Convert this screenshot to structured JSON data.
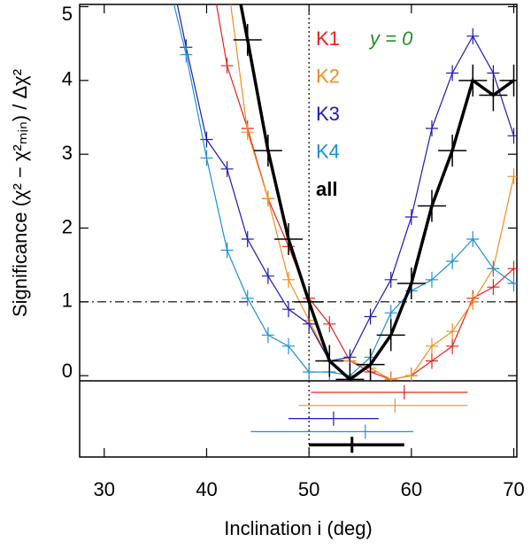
{
  "chart_data": {
    "type": "line",
    "xlabel": "Inclination i (deg)",
    "ylabel": "Significance (χ² − χ²ₘᵢₙ) / Δχ²",
    "annotation": "y = 0",
    "xlim": [
      27.6,
      70.3
    ],
    "xticks": [
      30,
      40,
      50,
      60,
      70
    ],
    "ylim": [
      -0.07,
      5.03
    ],
    "yticks": [
      0,
      1,
      2,
      3,
      4,
      5
    ],
    "vlines": [
      50
    ],
    "hlines": [
      1
    ],
    "series": [
      {
        "name": "K1",
        "color": "#e8201e",
        "width": 1.2,
        "x": [
          40,
          42,
          44,
          46,
          48,
          50,
          52,
          54,
          56,
          58,
          60,
          62,
          64,
          66,
          68,
          70
        ],
        "values": [
          5.8,
          4.2,
          3.35,
          2.4,
          1.75,
          1.05,
          0.7,
          0.2,
          0.05,
          -0.05,
          0.0,
          0.2,
          0.4,
          1.05,
          1.2,
          1.45
        ],
        "best": 59.3,
        "range": [
          50.2,
          65.5
        ]
      },
      {
        "name": "K2",
        "color": "#f28c1f",
        "width": 1.2,
        "x": [
          42,
          44,
          46,
          48,
          50,
          52,
          54,
          56,
          58,
          60,
          62,
          64,
          66,
          68,
          70
        ],
        "values": [
          5.4,
          3.3,
          2.4,
          1.3,
          0.75,
          0.2,
          0.2,
          0.1,
          -0.05,
          0.0,
          0.4,
          0.6,
          1.0,
          1.45,
          2.7
        ],
        "best": 58.4,
        "range": [
          49.0,
          65.5
        ]
      },
      {
        "name": "K3",
        "color": "#1a1ab8",
        "width": 1.2,
        "x": [
          36,
          38,
          40,
          42,
          44,
          46,
          48,
          50,
          52,
          54,
          56,
          58,
          60,
          62,
          64,
          66,
          68,
          70
        ],
        "values": [
          5.8,
          4.45,
          3.2,
          2.8,
          1.85,
          1.35,
          0.9,
          0.7,
          0.2,
          0.25,
          0.8,
          1.3,
          2.15,
          3.35,
          4.1,
          4.6,
          4.1,
          3.25
        ],
        "best": 52.4,
        "range": [
          48.0,
          56.8
        ]
      },
      {
        "name": "K4",
        "color": "#1c8fd8",
        "width": 1.2,
        "x": [
          36,
          38,
          40,
          42,
          44,
          46,
          48,
          50,
          52,
          54,
          56,
          58,
          60,
          62,
          64,
          66,
          68,
          70
        ],
        "values": [
          5.5,
          4.35,
          2.95,
          1.7,
          1.05,
          0.55,
          0.4,
          0.05,
          0.05,
          0.0,
          0.25,
          0.85,
          1.15,
          1.3,
          1.55,
          1.85,
          1.45,
          1.25
        ],
        "best": 55.5,
        "range": [
          44.3,
          60.2
        ]
      },
      {
        "name": "all",
        "color": "#000000",
        "width": 3.5,
        "x": [
          42,
          44,
          46,
          48,
          50,
          52,
          54,
          56,
          58,
          60,
          62,
          64,
          66,
          68,
          70
        ],
        "values": [
          6.0,
          4.55,
          3.05,
          1.85,
          1.0,
          0.2,
          -0.05,
          0.15,
          0.55,
          1.25,
          2.3,
          3.05,
          4.0,
          3.8,
          4.0
        ],
        "best": 54.2,
        "range": [
          50.0,
          59.3
        ]
      }
    ]
  }
}
